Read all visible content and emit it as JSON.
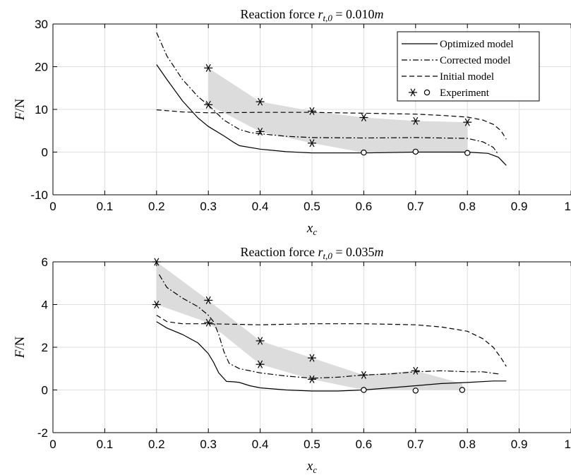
{
  "chart_data": [
    {
      "type": "line",
      "title_prefix": "Reaction force ",
      "title_math": "r",
      "title_sub": "t,0",
      "title_value": " = 0.010",
      "title_unit": "m",
      "xlabel_main": "x",
      "xlabel_sub": "c",
      "ylabel_main": "F",
      "ylabel_unit": "/N",
      "xlim": [
        0,
        1
      ],
      "ylim": [
        -10,
        30
      ],
      "xticks": [
        0,
        0.1,
        0.2,
        0.3,
        0.4,
        0.5,
        0.6,
        0.7,
        0.8,
        0.9,
        1
      ],
      "xtick_labels": [
        "0",
        "0.1",
        "0.2",
        "0.3",
        "0.4",
        "0.5",
        "0.6",
        "0.7",
        "0.8",
        "0.9",
        "1"
      ],
      "yticks": [
        -10,
        0,
        10,
        20,
        30
      ],
      "ytick_labels": [
        "-10",
        "0",
        "10",
        "20",
        "30"
      ],
      "grid": true,
      "legend_position": "top-right",
      "legend": [
        {
          "label": "Optimized model",
          "style": "solid"
        },
        {
          "label": "Corrected model",
          "style": "dashdot"
        },
        {
          "label": "Initial model",
          "style": "dashed"
        },
        {
          "label": "Experiment",
          "style": "markers"
        }
      ],
      "band": {
        "color": "#dcdcdc",
        "x": [
          0.3,
          0.4,
          0.5,
          0.6,
          0.7,
          0.8
        ],
        "upper": [
          19.7,
          11.8,
          9.6,
          8.1,
          7.3,
          7.0
        ],
        "lower": [
          11.1,
          4.8,
          2.1,
          -0.1,
          0.1,
          -0.2
        ]
      },
      "series": [
        {
          "name": "Optimized model",
          "style": "solid",
          "x": [
            0.2,
            0.22,
            0.25,
            0.28,
            0.3,
            0.33,
            0.35,
            0.36,
            0.4,
            0.45,
            0.5,
            0.6,
            0.7,
            0.8,
            0.84,
            0.86,
            0.875
          ],
          "y": [
            20.5,
            17,
            12,
            8,
            6,
            3.8,
            2.2,
            1.5,
            0.7,
            0.1,
            -0.2,
            -0.2,
            0,
            0,
            -0.3,
            -1.2,
            -3.1
          ]
        },
        {
          "name": "Corrected model",
          "style": "dashdot",
          "x": [
            0.2,
            0.22,
            0.25,
            0.28,
            0.3,
            0.33,
            0.36,
            0.38,
            0.4,
            0.45,
            0.5,
            0.6,
            0.7,
            0.8,
            0.83,
            0.85,
            0.86
          ],
          "y": [
            28,
            22.5,
            17,
            13,
            11,
            7.5,
            5.3,
            4.6,
            4.3,
            3.7,
            3.4,
            3.3,
            3.4,
            3.2,
            2.4,
            1.1,
            -0.6
          ]
        },
        {
          "name": "Initial model",
          "style": "dashed",
          "x": [
            0.2,
            0.25,
            0.3,
            0.4,
            0.5,
            0.6,
            0.7,
            0.75,
            0.8,
            0.83,
            0.85,
            0.865,
            0.875
          ],
          "y": [
            9.9,
            9.4,
            9.2,
            9.3,
            9.3,
            9.1,
            8.9,
            8.6,
            8.2,
            7.5,
            6.5,
            5.0,
            3.0
          ]
        }
      ],
      "experiment_star": {
        "x": [
          0.3,
          0.3,
          0.4,
          0.4,
          0.5,
          0.5,
          0.6,
          0.7,
          0.8
        ],
        "y": [
          19.7,
          11.1,
          11.8,
          4.8,
          9.6,
          2.1,
          8.1,
          7.3,
          7.0
        ]
      },
      "experiment_circle": {
        "x": [
          0.6,
          0.7,
          0.8
        ],
        "y": [
          -0.1,
          0.1,
          -0.2
        ]
      }
    },
    {
      "type": "line",
      "title_prefix": "Reaction force ",
      "title_math": "r",
      "title_sub": "t,0",
      "title_value": " = 0.035",
      "title_unit": "m",
      "xlabel_main": "x",
      "xlabel_sub": "c",
      "ylabel_main": "F",
      "ylabel_unit": "/N",
      "xlim": [
        0,
        1
      ],
      "ylim": [
        -2,
        6
      ],
      "xticks": [
        0,
        0.1,
        0.2,
        0.3,
        0.4,
        0.5,
        0.6,
        0.7,
        0.8,
        0.9,
        1
      ],
      "xtick_labels": [
        "0",
        "0.1",
        "0.2",
        "0.3",
        "0.4",
        "0.5",
        "0.6",
        "0.7",
        "0.8",
        "0.9",
        "1"
      ],
      "yticks": [
        -2,
        0,
        2,
        4,
        6
      ],
      "ytick_labels": [
        "-2",
        "0",
        "2",
        "4",
        "6"
      ],
      "grid": true,
      "band": {
        "color": "#dcdcdc",
        "x": [
          0.2,
          0.3,
          0.4,
          0.5,
          0.6,
          0.7,
          0.79
        ],
        "upper": [
          6.0,
          4.2,
          2.3,
          1.5,
          0.7,
          0.9,
          0.3
        ],
        "lower": [
          4.0,
          3.15,
          1.2,
          0.5,
          0.0,
          0.0,
          0.0
        ]
      },
      "series": [
        {
          "name": "Optimized model",
          "style": "solid",
          "x": [
            0.2,
            0.22,
            0.25,
            0.28,
            0.3,
            0.31,
            0.32,
            0.335,
            0.35,
            0.36,
            0.38,
            0.4,
            0.45,
            0.5,
            0.55,
            0.6,
            0.65,
            0.7,
            0.75,
            0.8,
            0.85,
            0.875
          ],
          "y": [
            3.2,
            2.9,
            2.6,
            2.2,
            1.7,
            1.3,
            0.8,
            0.4,
            0.38,
            0.35,
            0.2,
            0.1,
            0.0,
            -0.05,
            -0.05,
            0.0,
            0.1,
            0.2,
            0.3,
            0.35,
            0.42,
            0.42
          ]
        },
        {
          "name": "Corrected model",
          "style": "dashdot",
          "x": [
            0.205,
            0.22,
            0.25,
            0.28,
            0.3,
            0.31,
            0.32,
            0.33,
            0.34,
            0.36,
            0.4,
            0.45,
            0.5,
            0.55,
            0.6,
            0.65,
            0.7,
            0.75,
            0.8,
            0.83,
            0.86
          ],
          "y": [
            5.4,
            4.8,
            4.3,
            3.9,
            3.5,
            3.2,
            2.6,
            1.8,
            1.25,
            1.0,
            0.8,
            0.65,
            0.55,
            0.6,
            0.7,
            0.75,
            0.85,
            0.9,
            0.85,
            0.85,
            0.75
          ]
        },
        {
          "name": "Initial model",
          "style": "dashed",
          "x": [
            0.2,
            0.22,
            0.25,
            0.3,
            0.4,
            0.5,
            0.6,
            0.7,
            0.75,
            0.8,
            0.83,
            0.85,
            0.865,
            0.875
          ],
          "y": [
            3.5,
            3.2,
            3.1,
            3.1,
            3.05,
            3.1,
            3.1,
            3.05,
            2.95,
            2.75,
            2.4,
            2.0,
            1.5,
            1.1
          ]
        }
      ],
      "experiment_star": {
        "x": [
          0.2,
          0.2,
          0.3,
          0.3,
          0.4,
          0.4,
          0.5,
          0.5,
          0.6,
          0.7
        ],
        "y": [
          6.0,
          4.0,
          4.2,
          3.15,
          2.3,
          1.2,
          1.5,
          0.5,
          0.7,
          0.9
        ]
      },
      "experiment_circle": {
        "x": [
          0.6,
          0.7,
          0.79
        ],
        "y": [
          0.0,
          -0.03,
          0.0
        ]
      }
    }
  ]
}
